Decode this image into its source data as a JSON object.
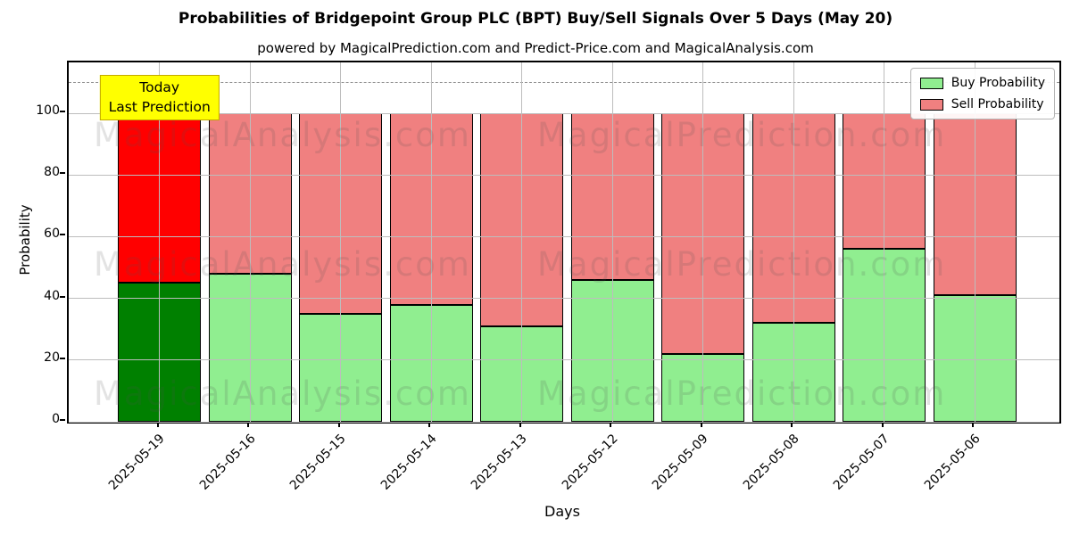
{
  "title": "Probabilities of Bridgepoint Group PLC (BPT) Buy/Sell Signals Over 5 Days (May 20)",
  "subtitle": "powered by MagicalPrediction.com and Predict-Price.com and MagicalAnalysis.com",
  "axes": {
    "ylabel": "Probability",
    "xlabel": "Days"
  },
  "annotation": {
    "line1": "Today",
    "line2": "Last Prediction",
    "bg_color": "#ffff00",
    "border_color": "#c2a800"
  },
  "watermarks": {
    "left_text": "MagicalAnalysis.com",
    "right_text": "MagicalPrediction.com"
  },
  "legend": {
    "items": [
      {
        "label": "Buy Probability",
        "color": "#90ee90"
      },
      {
        "label": "Sell Probability",
        "color": "#f08080"
      }
    ]
  },
  "chart_data": {
    "type": "bar",
    "stacked": true,
    "title": "Probabilities of Bridgepoint Group PLC (BPT) Buy/Sell Signals Over 5 Days (May 20)",
    "xlabel": "Days",
    "ylabel": "Probability",
    "categories": [
      "2025-05-19",
      "2025-05-16",
      "2025-05-15",
      "2025-05-14",
      "2025-05-13",
      "2025-05-12",
      "2025-05-09",
      "2025-05-08",
      "2025-05-07",
      "2025-05-06"
    ],
    "series": [
      {
        "name": "Buy Probability",
        "values": [
          45,
          48,
          35,
          38,
          31,
          46,
          22,
          32,
          56,
          41
        ]
      },
      {
        "name": "Sell Probability",
        "values": [
          55,
          52,
          65,
          62,
          69,
          54,
          78,
          68,
          44,
          59
        ]
      }
    ],
    "yticks": [
      0,
      20,
      40,
      60,
      80,
      100
    ],
    "ylim": [
      0,
      116.5
    ],
    "dashed_guideline_y": 110,
    "grid": true,
    "legend_position": "upper right",
    "highlight_index": 0,
    "colors": {
      "buy": "#90ee90",
      "sell": "#f08080",
      "highlight_buy": "#008000",
      "highlight_sell": "#ff0000",
      "bar_edge": "#000000",
      "grid": "#bdbdbd",
      "guideline": "#8f8f8f"
    }
  }
}
